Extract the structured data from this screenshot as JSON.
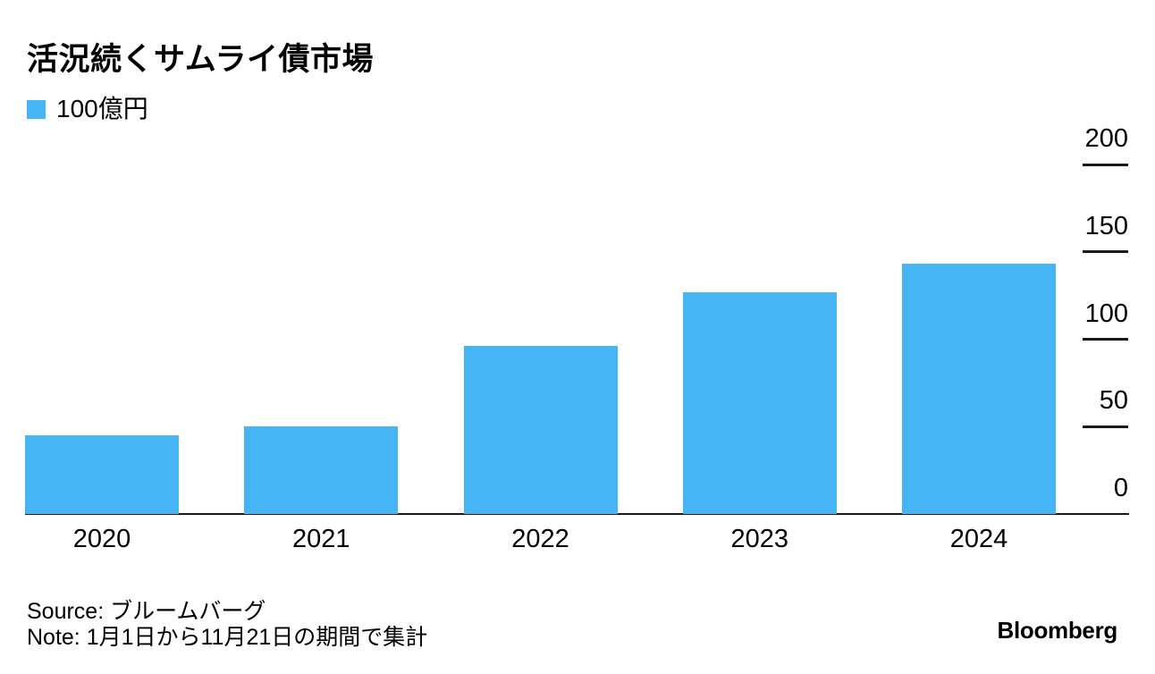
{
  "title": "活況続くサムライ債市場",
  "legend": {
    "label": "100億円",
    "color": "#45B5F6"
  },
  "chart_data": {
    "type": "bar",
    "title": "活況続くサムライ債市場",
    "categories": [
      "2020",
      "2021",
      "2022",
      "2023",
      "2024"
    ],
    "values": [
      45,
      50,
      96,
      127,
      143
    ],
    "series_name": "100億円",
    "unit": "100億円",
    "ylim": [
      0,
      200
    ],
    "yticks": [
      200,
      150,
      100,
      50,
      0
    ],
    "y_axis_side": "right",
    "bar_color": "#45B5F6",
    "axis_color": "#1a1a1a",
    "grid": false,
    "legend_position": "top-left"
  },
  "footer": {
    "source": "Source: ブルームバーグ",
    "note": "Note: 1月1日から11月21日の期間で集計",
    "brand": "Bloomberg"
  }
}
